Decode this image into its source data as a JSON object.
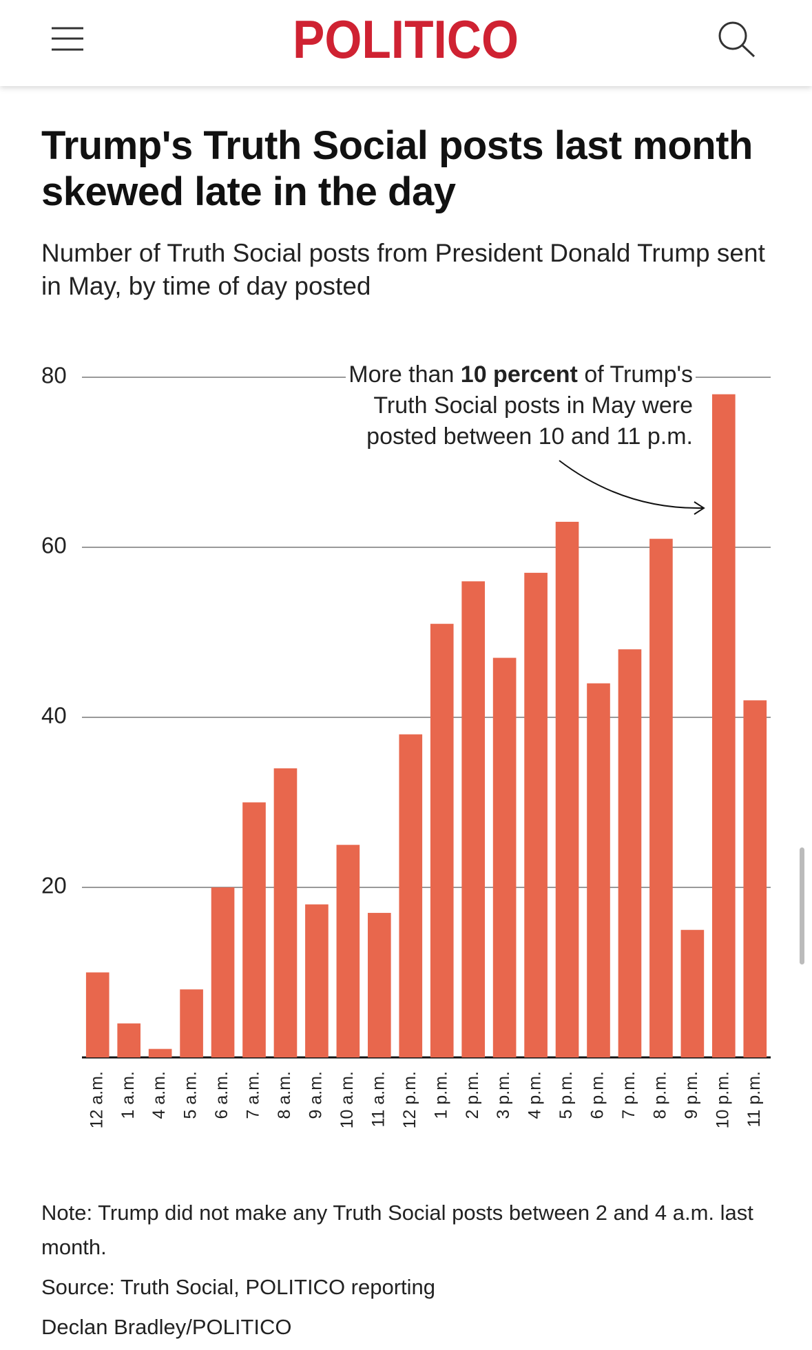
{
  "header": {
    "logo": "POLITICO"
  },
  "chart_data": {
    "type": "bar",
    "title": "Trump's Truth Social posts last month skewed late in the day",
    "subtitle": "Number of Truth Social posts from President Donald Trump sent in May, by time of day posted",
    "categories": [
      "12 a.m.",
      "1 a.m.",
      "4 a.m.",
      "5 a.m.",
      "6 a.m.",
      "7 a.m.",
      "8 a.m.",
      "9 a.m.",
      "10 a.m.",
      "11 a.m.",
      "12 p.m.",
      "1 p.m.",
      "2 p.m.",
      "3 p.m.",
      "4 p.m.",
      "5 p.m.",
      "6 p.m.",
      "7 p.m.",
      "8 p.m.",
      "9 p.m.",
      "10 p.m.",
      "11 p.m."
    ],
    "values": [
      10,
      4,
      1,
      8,
      20,
      30,
      34,
      18,
      25,
      17,
      38,
      51,
      56,
      47,
      57,
      63,
      44,
      48,
      61,
      15,
      78,
      42
    ],
    "color": "#e8674d",
    "ylim": [
      0,
      80
    ],
    "yticks": [
      20,
      40,
      60,
      80
    ],
    "grid": true,
    "annotation": [
      "More than ",
      "10 percent",
      " of Trump's",
      "Truth Social posts in May were",
      "posted between 10 and 11 p.m."
    ],
    "note": "Note: Trump did not make any Truth Social posts between 2 and 4 a.m. last month.",
    "source": "Source: Truth Social, POLITICO reporting",
    "credit": "Declan Bradley/POLITICO"
  }
}
